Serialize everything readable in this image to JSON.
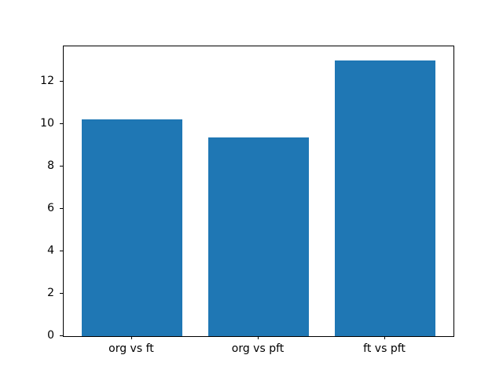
{
  "figure": {
    "background_color": "#ffffff",
    "spine_color": "#000000",
    "text_color": "#000000"
  },
  "chart_data": {
    "type": "bar",
    "categories": [
      "org vs ft",
      "org vs pft",
      "ft vs pft"
    ],
    "values": [
      10.2,
      9.35,
      13.0
    ],
    "title": "",
    "xlabel": "",
    "ylabel": "",
    "ylim": [
      0,
      13.65
    ],
    "xlim": [
      -0.54,
      2.54
    ],
    "yticks": [
      0,
      2,
      4,
      6,
      8,
      10,
      12
    ],
    "bar_color": "#1f77b4",
    "bar_width_frac": 0.8,
    "grid": false,
    "legend_position": "none"
  }
}
